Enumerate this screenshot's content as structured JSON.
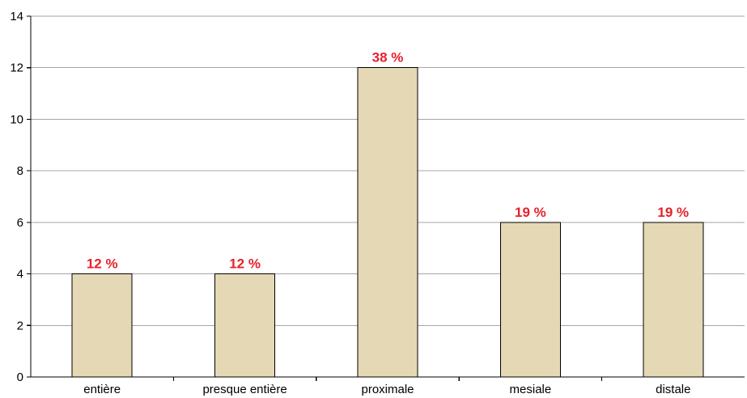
{
  "chart_data": {
    "type": "bar",
    "title": "",
    "xlabel": "",
    "ylabel": "",
    "categories": [
      "entière",
      "presque entière",
      "proximale",
      "mesiale",
      "distale"
    ],
    "values": [
      4,
      4,
      12,
      6,
      6
    ],
    "data_labels": [
      "12 %",
      "12 %",
      "38 %",
      "19 %",
      "19 %"
    ],
    "ylim": [
      0,
      14
    ],
    "yticks": [
      0,
      2,
      4,
      6,
      8,
      10,
      12,
      14
    ],
    "grid": true,
    "legend": "none",
    "colors": {
      "bar_fill": "#e5d8b5",
      "bar_stroke": "#000000",
      "data_label": "#e8202a",
      "grid": "#a6a6a6",
      "axis": "#000000"
    }
  }
}
